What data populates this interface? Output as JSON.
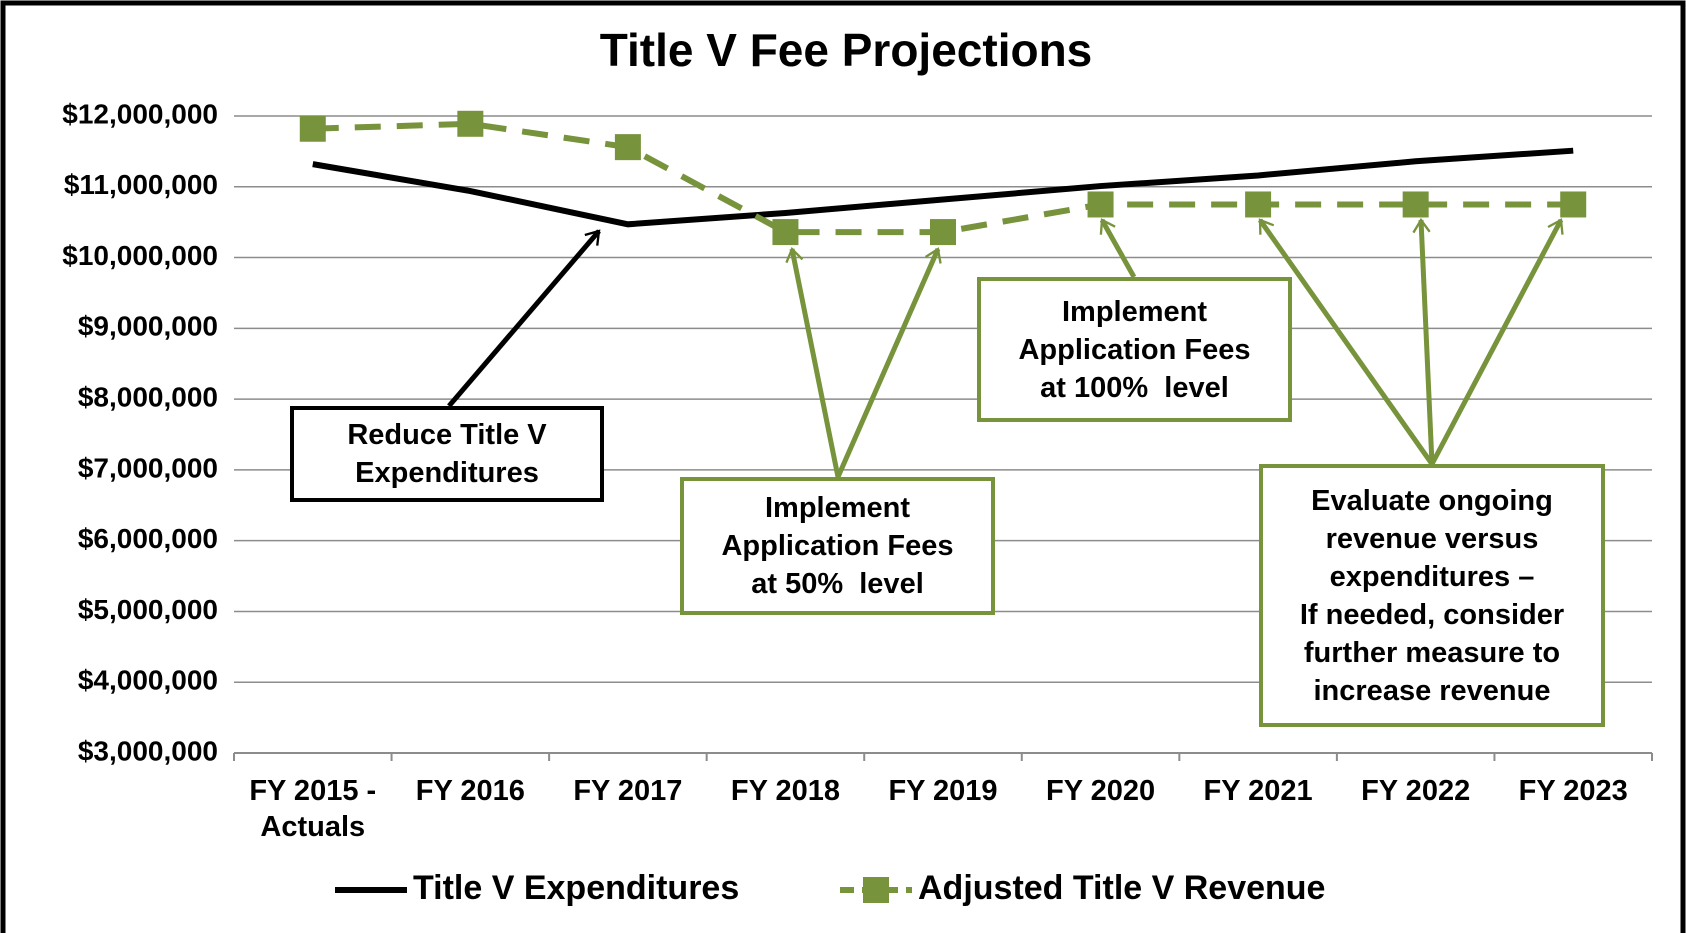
{
  "chart_data": {
    "type": "line",
    "title": "Title V Fee Projections",
    "categories": [
      "FY 2015 - Actuals",
      "FY 2016",
      "FY 2017",
      "FY 2018",
      "FY 2019",
      "FY 2020",
      "FY 2021",
      "FY 2022",
      "FY 2023"
    ],
    "series": [
      {
        "name": "Title V Expenditures",
        "color": "#000000",
        "dashed": false,
        "marker": false,
        "values": [
          11320000,
          10940000,
          10470000,
          10630000,
          10820000,
          11010000,
          11160000,
          11360000,
          11510000
        ]
      },
      {
        "name": "Adjusted Title V Revenue",
        "color": "#77933c",
        "dashed": true,
        "marker": true,
        "values": [
          11820000,
          11890000,
          11560000,
          10360000,
          10360000,
          10750000,
          10750000,
          10750000,
          10750000
        ]
      }
    ],
    "ylim": [
      3000000,
      12000000
    ],
    "yticks": [
      {
        "value": 3000000,
        "label": "$3,000,000"
      },
      {
        "value": 4000000,
        "label": "$4,000,000"
      },
      {
        "value": 5000000,
        "label": "$5,000,000"
      },
      {
        "value": 6000000,
        "label": "$6,000,000"
      },
      {
        "value": 7000000,
        "label": "$7,000,000"
      },
      {
        "value": 8000000,
        "label": "$8,000,000"
      },
      {
        "value": 9000000,
        "label": "$9,000,000"
      },
      {
        "value": 10000000,
        "label": "$10,000,000"
      },
      {
        "value": 11000000,
        "label": "$11,000,000"
      },
      {
        "value": 12000000,
        "label": "$12,000,000"
      }
    ],
    "grid": true,
    "legend": "bottom",
    "annotations": [
      {
        "lines": [
          "Reduce Title V",
          "Expenditures"
        ],
        "color": "#000000"
      },
      {
        "lines": [
          "Implement",
          "Application Fees",
          "at 50%  level"
        ],
        "color": "#77933c"
      },
      {
        "lines": [
          "Implement",
          "Application Fees",
          "at 100%  level"
        ],
        "color": "#77933c"
      },
      {
        "lines": [
          "Evaluate ongoing",
          "revenue versus",
          "expenditures –",
          "If needed, consider",
          "further measure to",
          "increase revenue"
        ],
        "color": "#77933c"
      }
    ]
  }
}
